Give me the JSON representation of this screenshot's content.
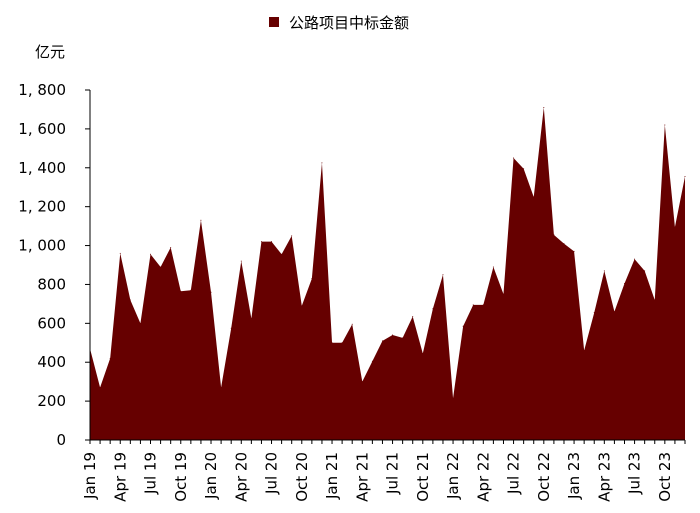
{
  "chart_data": {
    "type": "area",
    "unit_label": "亿元",
    "series": [
      {
        "name": "公路项目中标金额",
        "color": "#660000",
        "x": [
          "2019-01",
          "2019-02",
          "2019-03",
          "2019-04",
          "2019-05",
          "2019-06",
          "2019-07",
          "2019-08",
          "2019-09",
          "2019-10",
          "2019-11",
          "2019-12",
          "2020-01",
          "2020-02",
          "2020-03",
          "2020-04",
          "2020-05",
          "2020-06",
          "2020-07",
          "2020-08",
          "2020-09",
          "2020-10",
          "2020-11",
          "2020-12",
          "2021-01",
          "2021-02",
          "2021-03",
          "2021-04",
          "2021-05",
          "2021-06",
          "2021-07",
          "2021-08",
          "2021-09",
          "2021-10",
          "2021-11",
          "2021-12",
          "2022-01",
          "2022-02",
          "2022-03",
          "2022-04",
          "2022-05",
          "2022-06",
          "2022-07",
          "2022-08",
          "2022-09",
          "2022-10",
          "2022-11",
          "2022-12",
          "2023-01",
          "2023-02",
          "2023-03",
          "2023-04",
          "2023-05",
          "2023-06",
          "2023-07",
          "2023-08",
          "2023-09",
          "2023-10",
          "2023-11",
          "2023-12"
        ],
        "values": [
          470,
          270,
          420,
          960,
          720,
          600,
          955,
          890,
          990,
          765,
          770,
          1130,
          760,
          270,
          575,
          920,
          625,
          1020,
          1020,
          955,
          1050,
          690,
          830,
          1425,
          500,
          500,
          595,
          300,
          405,
          510,
          540,
          525,
          635,
          445,
          675,
          850,
          215,
          585,
          695,
          695,
          890,
          750,
          1450,
          1395,
          1250,
          1710,
          1055,
          1010,
          970,
          460,
          655,
          870,
          660,
          805,
          930,
          870,
          720,
          1620,
          1095,
          1355
        ]
      }
    ],
    "x_tick_labels": [
      "Jan 19",
      "Apr 19",
      "Jul 19",
      "Oct 19",
      "Jan 20",
      "Apr 20",
      "Jul 20",
      "Oct 20",
      "Jan 21",
      "Apr 21",
      "Jul 21",
      "Oct 21",
      "Jan 22",
      "Apr 22",
      "Jul 22",
      "Oct 22",
      "Jan 23",
      "Apr 23",
      "Jul 23",
      "Oct 23"
    ],
    "y_ticks": [
      0,
      200,
      400,
      600,
      800,
      1000,
      1200,
      1400,
      1600,
      1800
    ],
    "y_tick_labels": [
      "0",
      "200",
      "400",
      "600",
      "800",
      "1, 000",
      "1, 200",
      "1, 400",
      "1, 600",
      "1, 800"
    ],
    "ylim": [
      0,
      1800
    ],
    "grid": false,
    "legend_position": "top-center"
  }
}
